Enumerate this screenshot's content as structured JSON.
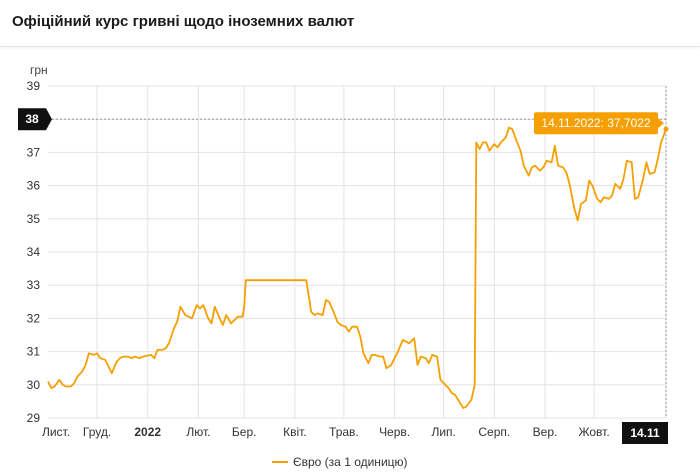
{
  "header": {
    "title": "Офіційний курс гривні щодо іноземних валют"
  },
  "colors": {
    "series": "#f5a000",
    "grid": "#e3e3e3",
    "badge": "#111111",
    "tooltip": "#f5a000"
  },
  "chart_data": {
    "type": "line",
    "ylabel": "грн",
    "ylim": [
      29,
      39
    ],
    "yticks": [
      29,
      30,
      31,
      32,
      33,
      34,
      35,
      36,
      37,
      38,
      39
    ],
    "x_range": [
      "2021-11-01",
      "2022-11-14"
    ],
    "x_month_labels": [
      {
        "date": "2021-11-01",
        "label": "Лист."
      },
      {
        "date": "2021-12-01",
        "label": "Груд."
      },
      {
        "date": "2022-01-01",
        "label": "2022",
        "bold": true
      },
      {
        "date": "2022-02-01",
        "label": "Лют."
      },
      {
        "date": "2022-03-01",
        "label": "Бер."
      },
      {
        "date": "2022-04-01",
        "label": "Квіт."
      },
      {
        "date": "2022-05-01",
        "label": "Трав."
      },
      {
        "date": "2022-06-01",
        "label": "Черв."
      },
      {
        "date": "2022-07-01",
        "label": "Лип."
      },
      {
        "date": "2022-08-01",
        "label": "Серп."
      },
      {
        "date": "2022-09-01",
        "label": "Вер."
      },
      {
        "date": "2022-10-01",
        "label": "Жовт."
      }
    ],
    "crosshair_y_label": "38",
    "crosshair_x_label": "14.11",
    "tooltip": "14.11.2022: 37,7022",
    "legend": {
      "label": "Євро (за 1 одиницю)",
      "position": "bottom-center"
    },
    "grid": true,
    "series": [
      {
        "name": "Євро (за 1 одиницю)",
        "points": [
          [
            "2021-11-01",
            30.1
          ],
          [
            "2021-11-03",
            29.9
          ],
          [
            "2021-11-05",
            29.95
          ],
          [
            "2021-11-08",
            30.15
          ],
          [
            "2021-11-10",
            30.0
          ],
          [
            "2021-11-12",
            29.95
          ],
          [
            "2021-11-15",
            29.95
          ],
          [
            "2021-11-17",
            30.05
          ],
          [
            "2021-11-19",
            30.25
          ],
          [
            "2021-11-22",
            30.4
          ],
          [
            "2021-11-24",
            30.6
          ],
          [
            "2021-11-26",
            30.95
          ],
          [
            "2021-11-29",
            30.9
          ],
          [
            "2021-12-01",
            30.95
          ],
          [
            "2021-12-03",
            30.8
          ],
          [
            "2021-12-06",
            30.75
          ],
          [
            "2021-12-08",
            30.55
          ],
          [
            "2021-12-10",
            30.35
          ],
          [
            "2021-12-13",
            30.7
          ],
          [
            "2021-12-15",
            30.8
          ],
          [
            "2021-12-17",
            30.85
          ],
          [
            "2021-12-20",
            30.85
          ],
          [
            "2021-12-22",
            30.8
          ],
          [
            "2021-12-24",
            30.85
          ],
          [
            "2021-12-27",
            30.8
          ],
          [
            "2021-12-29",
            30.85
          ],
          [
            "2022-01-03",
            30.9
          ],
          [
            "2022-01-05",
            30.8
          ],
          [
            "2022-01-07",
            31.05
          ],
          [
            "2022-01-10",
            31.05
          ],
          [
            "2022-01-12",
            31.1
          ],
          [
            "2022-01-14",
            31.25
          ],
          [
            "2022-01-17",
            31.7
          ],
          [
            "2022-01-19",
            31.9
          ],
          [
            "2022-01-21",
            32.35
          ],
          [
            "2022-01-24",
            32.1
          ],
          [
            "2022-01-26",
            32.05
          ],
          [
            "2022-01-28",
            32.0
          ],
          [
            "2022-01-31",
            32.4
          ],
          [
            "2022-02-02",
            32.3
          ],
          [
            "2022-02-04",
            32.4
          ],
          [
            "2022-02-07",
            32.0
          ],
          [
            "2022-02-09",
            31.85
          ],
          [
            "2022-02-11",
            32.35
          ],
          [
            "2022-02-14",
            32.0
          ],
          [
            "2022-02-16",
            31.8
          ],
          [
            "2022-02-18",
            32.1
          ],
          [
            "2022-02-21",
            31.85
          ],
          [
            "2022-02-23",
            31.95
          ],
          [
            "2022-02-25",
            32.05
          ],
          [
            "2022-02-28",
            32.05
          ],
          [
            "2022-03-01",
            32.35
          ],
          [
            "2022-03-02",
            33.15
          ],
          [
            "2022-03-10",
            33.15
          ],
          [
            "2022-03-20",
            33.15
          ],
          [
            "2022-03-30",
            33.15
          ],
          [
            "2022-04-08",
            33.15
          ],
          [
            "2022-04-11",
            32.2
          ],
          [
            "2022-04-13",
            32.1
          ],
          [
            "2022-04-15",
            32.15
          ],
          [
            "2022-04-18",
            32.1
          ],
          [
            "2022-04-20",
            32.55
          ],
          [
            "2022-04-22",
            32.5
          ],
          [
            "2022-04-25",
            32.15
          ],
          [
            "2022-04-27",
            31.9
          ],
          [
            "2022-04-29",
            31.8
          ],
          [
            "2022-05-02",
            31.75
          ],
          [
            "2022-05-04",
            31.6
          ],
          [
            "2022-05-06",
            31.75
          ],
          [
            "2022-05-09",
            31.75
          ],
          [
            "2022-05-11",
            31.45
          ],
          [
            "2022-05-13",
            30.95
          ],
          [
            "2022-05-16",
            30.65
          ],
          [
            "2022-05-18",
            30.9
          ],
          [
            "2022-05-20",
            30.9
          ],
          [
            "2022-05-23",
            30.85
          ],
          [
            "2022-05-25",
            30.85
          ],
          [
            "2022-05-27",
            30.5
          ],
          [
            "2022-05-30",
            30.6
          ],
          [
            "2022-06-01",
            30.8
          ],
          [
            "2022-06-03",
            31.0
          ],
          [
            "2022-06-06",
            31.35
          ],
          [
            "2022-06-08",
            31.3
          ],
          [
            "2022-06-10",
            31.25
          ],
          [
            "2022-06-13",
            31.4
          ],
          [
            "2022-06-15",
            30.6
          ],
          [
            "2022-06-17",
            30.85
          ],
          [
            "2022-06-20",
            30.8
          ],
          [
            "2022-06-22",
            30.65
          ],
          [
            "2022-06-24",
            30.9
          ],
          [
            "2022-06-27",
            30.85
          ],
          [
            "2022-06-29",
            30.15
          ],
          [
            "2022-07-01",
            30.05
          ],
          [
            "2022-07-04",
            29.9
          ],
          [
            "2022-07-06",
            29.75
          ],
          [
            "2022-07-08",
            29.7
          ],
          [
            "2022-07-11",
            29.45
          ],
          [
            "2022-07-13",
            29.3
          ],
          [
            "2022-07-15",
            29.35
          ],
          [
            "2022-07-18",
            29.55
          ],
          [
            "2022-07-20",
            30.0
          ],
          [
            "2022-07-21",
            37.3
          ],
          [
            "2022-07-23",
            37.1
          ],
          [
            "2022-07-25",
            37.3
          ],
          [
            "2022-07-27",
            37.3
          ],
          [
            "2022-07-29",
            37.05
          ],
          [
            "2022-08-01",
            37.25
          ],
          [
            "2022-08-03",
            37.15
          ],
          [
            "2022-08-05",
            37.3
          ],
          [
            "2022-08-08",
            37.45
          ],
          [
            "2022-08-10",
            37.75
          ],
          [
            "2022-08-12",
            37.7
          ],
          [
            "2022-08-15",
            37.3
          ],
          [
            "2022-08-17",
            37.05
          ],
          [
            "2022-08-19",
            36.6
          ],
          [
            "2022-08-22",
            36.3
          ],
          [
            "2022-08-24",
            36.55
          ],
          [
            "2022-08-26",
            36.6
          ],
          [
            "2022-08-29",
            36.45
          ],
          [
            "2022-08-31",
            36.55
          ],
          [
            "2022-09-02",
            36.75
          ],
          [
            "2022-09-05",
            36.7
          ],
          [
            "2022-09-07",
            37.2
          ],
          [
            "2022-09-09",
            36.6
          ],
          [
            "2022-09-12",
            36.55
          ],
          [
            "2022-09-14",
            36.4
          ],
          [
            "2022-09-16",
            36.05
          ],
          [
            "2022-09-19",
            35.3
          ],
          [
            "2022-09-21",
            34.95
          ],
          [
            "2022-09-23",
            35.45
          ],
          [
            "2022-09-26",
            35.55
          ],
          [
            "2022-09-28",
            36.15
          ],
          [
            "2022-09-30",
            36.0
          ],
          [
            "2022-10-03",
            35.6
          ],
          [
            "2022-10-05",
            35.5
          ],
          [
            "2022-10-07",
            35.65
          ],
          [
            "2022-10-10",
            35.6
          ],
          [
            "2022-10-12",
            35.7
          ],
          [
            "2022-10-14",
            36.05
          ],
          [
            "2022-10-17",
            35.9
          ],
          [
            "2022-10-19",
            36.2
          ],
          [
            "2022-10-21",
            36.75
          ],
          [
            "2022-10-24",
            36.7
          ],
          [
            "2022-10-26",
            35.6
          ],
          [
            "2022-10-28",
            35.65
          ],
          [
            "2022-10-31",
            36.2
          ],
          [
            "2022-11-02",
            36.7
          ],
          [
            "2022-11-04",
            36.35
          ],
          [
            "2022-11-07",
            36.4
          ],
          [
            "2022-11-09",
            36.8
          ],
          [
            "2022-11-11",
            37.3
          ],
          [
            "2022-11-14",
            37.7
          ]
        ]
      }
    ]
  }
}
